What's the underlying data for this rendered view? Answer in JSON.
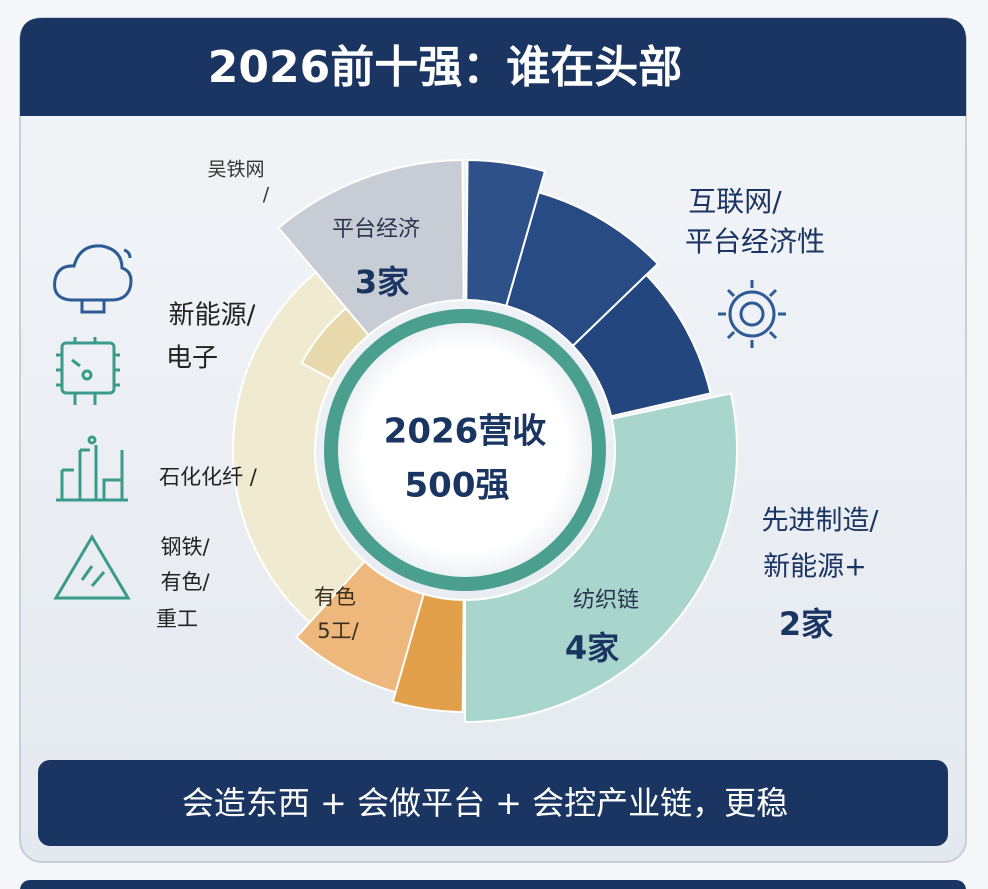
{
  "header": {
    "title": "2026前十强：谁在头部"
  },
  "center": {
    "lines": [
      "2026营收",
      "500强"
    ]
  },
  "segments": [
    {
      "label": "平台经济",
      "count": "3家"
    },
    {
      "label": "纺织链",
      "count": "4家"
    },
    {
      "lines": [
        "有色",
        "5工/"
      ]
    }
  ],
  "side_labels": [
    {
      "lines": [
        "吴铁网",
        "/"
      ]
    },
    {
      "lines": [
        "互联网/",
        "平台经济性"
      ]
    },
    {
      "lines": [
        "新能源/",
        "电子"
      ]
    },
    {
      "lines": [
        "石化化纤 /"
      ]
    },
    {
      "lines": [
        "钢铁/",
        "有色/",
        "重工"
      ]
    },
    {
      "lines": [
        "先进制造/",
        "新能源+",
        "2家"
      ]
    }
  ],
  "footer": {
    "text": "会造东西 + 会做平台 + 会控产业链，更稳"
  }
}
